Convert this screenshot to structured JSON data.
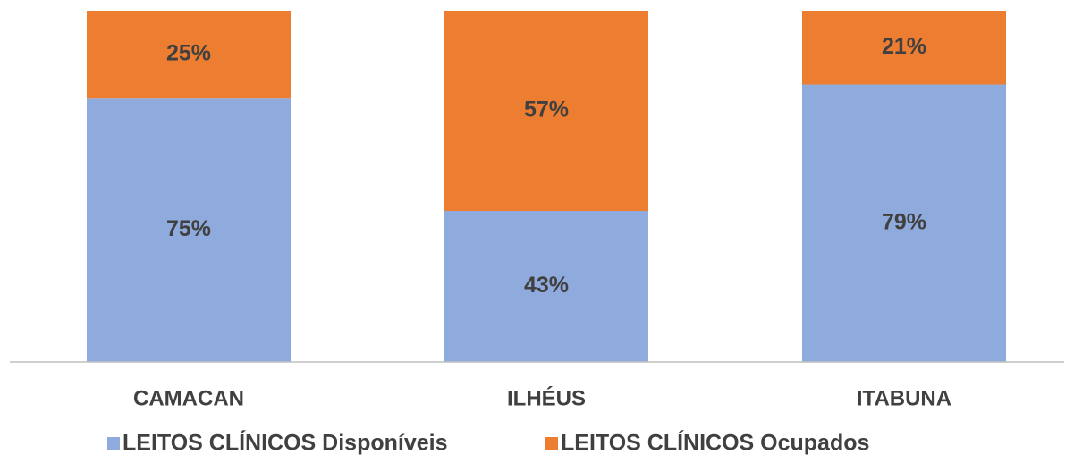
{
  "chart_data": {
    "type": "stacked_bar",
    "categories": [
      "CAMACAN",
      "ILHÉUS",
      "ITABUNA"
    ],
    "series": [
      {
        "name": "LEITOS CLÍNICOS Disponíveis",
        "color": "#8faadc",
        "values": [
          75,
          43,
          79
        ],
        "value_labels": [
          "75%",
          "43%",
          "79%"
        ]
      },
      {
        "name": "LEITOS CLÍNICOS Ocupados",
        "color": "#ed7d31",
        "values": [
          25,
          57,
          21
        ],
        "value_labels": [
          "25%",
          "57%",
          "21%"
        ]
      }
    ],
    "ylim": [
      0,
      100
    ],
    "legend": "bottom"
  }
}
